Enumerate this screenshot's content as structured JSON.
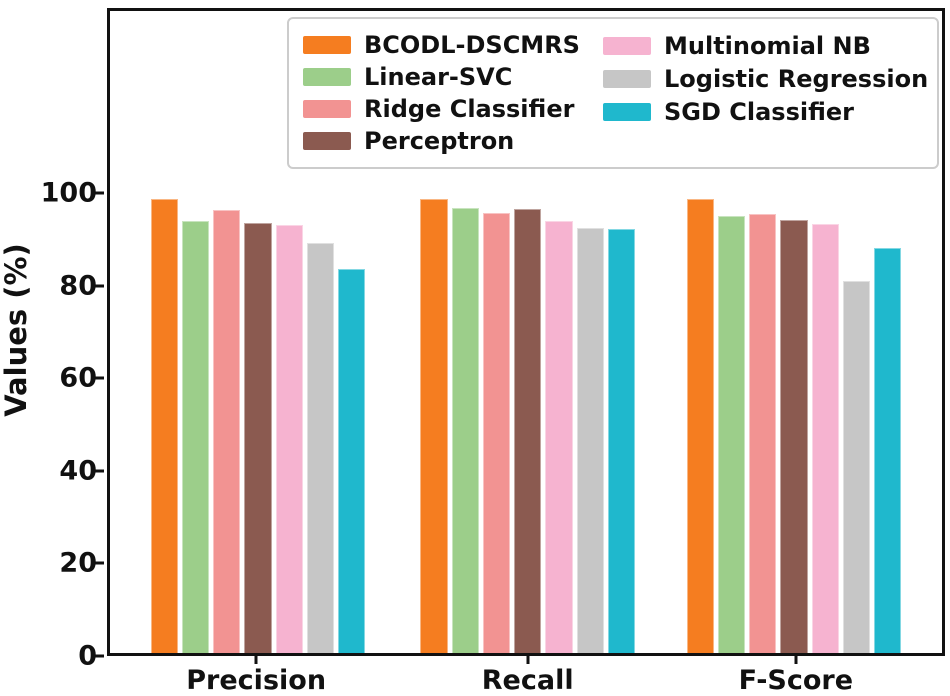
{
  "chart_data": {
    "type": "bar",
    "title": "",
    "xlabel": "",
    "ylabel": "Values (%)",
    "categories": [
      "Precision",
      "Recall",
      "F-Score"
    ],
    "series": [
      {
        "name": "BCODL-DSCMRS",
        "color": "#F57D20",
        "values": [
          99.0,
          99.0,
          99.0
        ]
      },
      {
        "name": "Linear-SVC",
        "color": "#9CCE8A",
        "values": [
          94.2,
          97.0,
          95.3
        ]
      },
      {
        "name": "Ridge Classifier",
        "color": "#F29392",
        "values": [
          96.5,
          96.0,
          95.7
        ]
      },
      {
        "name": "Perceptron",
        "color": "#8B5A50",
        "values": [
          93.8,
          96.8,
          94.4
        ]
      },
      {
        "name": "Multinomial NB",
        "color": "#F6B3D0",
        "values": [
          93.3,
          94.3,
          93.5
        ]
      },
      {
        "name": "Logistic Regression",
        "color": "#C6C6C6",
        "values": [
          89.5,
          92.7,
          81.2
        ]
      },
      {
        "name": "SGD Classifier",
        "color": "#1FB8CD",
        "values": [
          83.8,
          92.5,
          88.4
        ]
      }
    ],
    "ylim": [
      0,
      140
    ],
    "y_ticks": [
      0,
      20,
      40,
      60,
      80,
      100
    ],
    "grid": false,
    "legend": {
      "position": "upper center inside plot",
      "columns": [
        [
          "BCODL-DSCMRS",
          "Linear-SVC",
          "Ridge Classifier",
          "Perceptron"
        ],
        [
          "Multinomial NB",
          "Logistic Regression",
          "SGD Classifier"
        ]
      ]
    },
    "axis_color": "#111111",
    "background_color": "#ffffff"
  }
}
